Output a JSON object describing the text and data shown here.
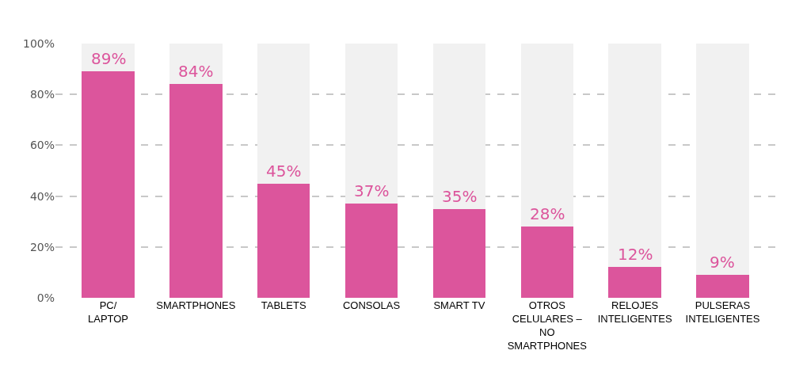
{
  "chart_data": {
    "type": "bar",
    "stacked": true,
    "categories": [
      "PC/\nLAPTOP",
      "SMARTPHONES",
      "TABLETS",
      "CONSOLAS",
      "SMART TV",
      "OTROS\nCELULARES –\nNO\nSMARTPHONES",
      "RELOJES\nINTELIGENTES",
      "PULSERAS\nINTELIGENTES"
    ],
    "series": [
      {
        "color": "#dc559c",
        "values": [
          89,
          84,
          45,
          37,
          35,
          28,
          12,
          9
        ],
        "value_labels": [
          "89%",
          "84%",
          "45%",
          "37%",
          "35%",
          "28%",
          "12%",
          "9%"
        ]
      },
      {
        "color": "#f1f1f1",
        "values": [
          11,
          16,
          55,
          63,
          65,
          72,
          88,
          91
        ]
      }
    ],
    "ylim": [
      0,
      100
    ],
    "yticks": [
      {
        "value": 0,
        "label": "0%"
      },
      {
        "value": 20,
        "label": "20%"
      },
      {
        "value": 40,
        "label": "40%"
      },
      {
        "value": 60,
        "label": "60%"
      },
      {
        "value": 80,
        "label": "80%"
      },
      {
        "value": 100,
        "label": "100%"
      }
    ],
    "grid": "y",
    "line_style": "dashed"
  }
}
